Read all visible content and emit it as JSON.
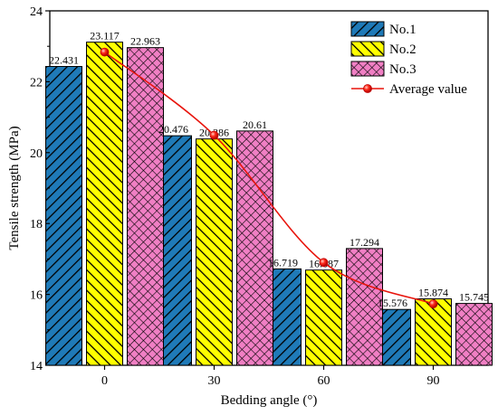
{
  "chart_data": {
    "type": "bar",
    "xlabel": "Bedding angle (°)",
    "ylabel": "Tensile strength (MPa)",
    "ylim": [
      14,
      24
    ],
    "yticks": [
      "14",
      "16",
      "18",
      "20",
      "22",
      "24"
    ],
    "categories": [
      "0",
      "30",
      "60",
      "90"
    ],
    "series": [
      {
        "name": "No.1",
        "values": [
          22.431,
          20.476,
          16.719,
          15.576
        ],
        "labels": [
          "22.431",
          "20.476",
          "16.719",
          "15.576"
        ],
        "color": "#1f7ab8",
        "pattern": "diagonal-hatch-up"
      },
      {
        "name": "No.2",
        "values": [
          23.117,
          20.386,
          16.687,
          15.874
        ],
        "labels": [
          "23.117",
          "20.386",
          "16.687",
          "15.874"
        ],
        "color": "#ffff00",
        "pattern": "diagonal-hatch-down"
      },
      {
        "name": "No.3",
        "values": [
          22.963,
          20.61,
          17.294,
          15.745
        ],
        "labels": [
          "22.963",
          "20.61",
          "17.294",
          "15.745"
        ],
        "color": "#f07fc4",
        "pattern": "cross-hatch"
      }
    ],
    "line": {
      "name": "Average value",
      "values": [
        22.837,
        20.491,
        16.9,
        15.732
      ],
      "color": "#e8140c",
      "marker": "circle"
    },
    "legend_position": "top-right",
    "grid": false
  }
}
